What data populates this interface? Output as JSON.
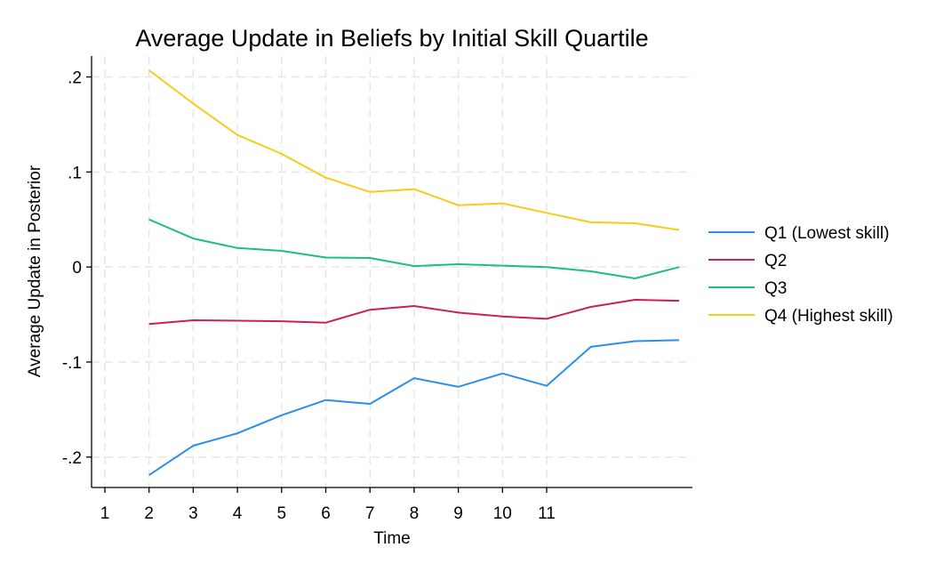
{
  "chart_data": {
    "type": "line",
    "title": "Average Update in Beliefs by Initial Skill Quartile",
    "xlabel": "Time",
    "ylabel": "Average Update in Posterior",
    "x": [
      2,
      3,
      4,
      5,
      6,
      7,
      8,
      9,
      10,
      11,
      12,
      13,
      14
    ],
    "xlim": [
      1,
      14.25
    ],
    "xticks": [
      1,
      2,
      3,
      4,
      5,
      6,
      7,
      8,
      9,
      10,
      11
    ],
    "xtick_labels": [
      "1",
      "2",
      "3",
      "4",
      "5",
      "6",
      "7",
      "8",
      "9",
      "10",
      "11"
    ],
    "ylim": [
      -0.232,
      0.222
    ],
    "yticks": [
      -0.2,
      -0.1,
      0,
      0.1,
      0.2
    ],
    "ytick_labels": [
      "-.2",
      "-.1",
      "0",
      ".1",
      ".2"
    ],
    "grid": true,
    "legend_position": "right",
    "series": [
      {
        "name": "Q1 (Lowest skill)",
        "color": "#2b8fe8",
        "values": [
          -0.219,
          -0.188,
          -0.175,
          -0.156,
          -0.14,
          -0.144,
          -0.117,
          -0.126,
          -0.112,
          -0.125,
          -0.084,
          -0.078,
          -0.077
        ]
      },
      {
        "name": "Q2",
        "color": "#cc1e5c",
        "values": [
          -0.06,
          -0.056,
          -0.0565,
          -0.057,
          -0.0585,
          -0.045,
          -0.041,
          -0.048,
          -0.052,
          -0.0545,
          -0.042,
          -0.0345,
          -0.0355
        ]
      },
      {
        "name": "Q3",
        "color": "#1cbf81",
        "values": [
          0.05,
          0.03,
          0.02,
          0.017,
          0.01,
          0.0095,
          0.001,
          0.003,
          0.0015,
          0.0,
          -0.0045,
          -0.012,
          0.0
        ]
      },
      {
        "name": "Q4 (Highest skill)",
        "color": "#f5cc1a",
        "values": [
          0.207,
          0.172,
          0.139,
          0.119,
          0.094,
          0.079,
          0.082,
          0.065,
          0.067,
          0.057,
          0.047,
          0.046,
          0.039
        ]
      }
    ]
  }
}
